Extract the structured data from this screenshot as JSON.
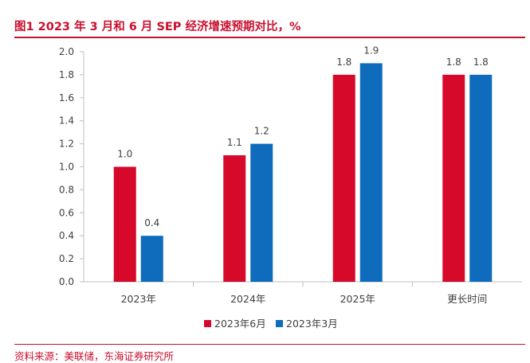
{
  "title": "图1  2023 年 3 月和 6 月 SEP 经济增速预期对比，%",
  "source": "资料来源：美联储，东海证券研究所",
  "chart_data": {
    "type": "bar",
    "title": "图1  2023 年 3 月和 6 月 SEP 经济增速预期对比，%",
    "xlabel": "",
    "ylabel": "",
    "ylim": [
      0.0,
      2.0
    ],
    "ytick_step": 0.2,
    "ytick_labels": [
      "0.0",
      "0.2",
      "0.4",
      "0.6",
      "0.8",
      "1.0",
      "1.2",
      "1.4",
      "1.6",
      "1.8",
      "2.0"
    ],
    "categories": [
      "2023年",
      "2024年",
      "2025年",
      "更长时间"
    ],
    "series": [
      {
        "name": "2023年6月",
        "color": "#d7092a",
        "values": [
          1.0,
          1.1,
          1.8,
          1.8
        ],
        "labels": [
          "1.0",
          "1.1",
          "1.8",
          "1.8"
        ]
      },
      {
        "name": "2023年3月",
        "color": "#0f6cbd",
        "values": [
          0.4,
          1.2,
          1.9,
          1.8
        ],
        "labels": [
          "0.4",
          "1.2",
          "1.9",
          "1.8"
        ]
      }
    ],
    "legend_position": "bottom",
    "grid": false
  }
}
